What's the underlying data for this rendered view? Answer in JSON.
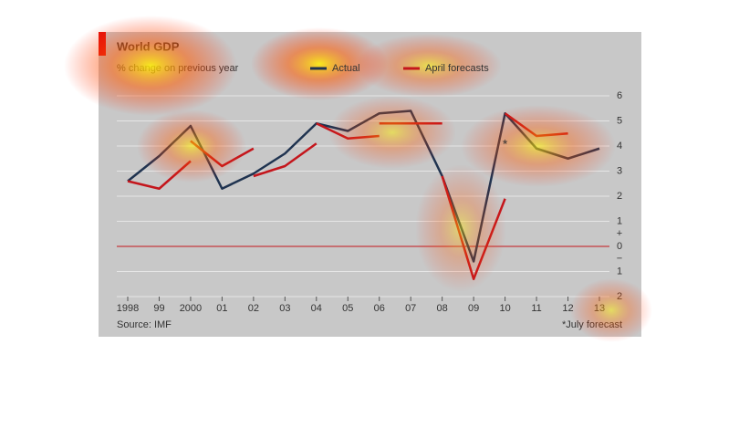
{
  "chart_data": {
    "type": "line",
    "title": "World GDP",
    "subtitle": "% change on previous year",
    "source": "Source: IMF",
    "footnote": "*July forecast",
    "annotation": "*",
    "sign_labels": [
      "+",
      "−"
    ],
    "categories": [
      "1998",
      "99",
      "2000",
      "01",
      "02",
      "03",
      "04",
      "05",
      "06",
      "07",
      "08",
      "09",
      "10",
      "11",
      "12",
      "13"
    ],
    "ylim": [
      -2,
      6
    ],
    "yticks": [
      6,
      5,
      4,
      3,
      2,
      1,
      0,
      {
        "value": -1,
        "label": "1"
      },
      {
        "value": -2,
        "label": "2"
      }
    ],
    "grid": true,
    "series": [
      {
        "name": "Actual",
        "color": "#1f3350",
        "values": [
          2.6,
          3.6,
          4.8,
          2.3,
          2.9,
          3.7,
          4.9,
          4.6,
          5.3,
          5.4,
          2.8,
          -0.6,
          5.3,
          3.9,
          3.5,
          3.9
        ]
      },
      {
        "name": "April forecasts",
        "color": "#c4161c",
        "segments": [
          [
            2.6,
            2.3,
            3.4,
            null,
            null,
            null,
            null,
            null,
            null,
            null,
            null,
            null,
            null,
            null,
            null,
            null
          ],
          [
            null,
            null,
            4.2,
            3.2,
            3.9,
            null,
            null,
            null,
            null,
            null,
            null,
            null,
            null,
            null,
            null,
            null
          ],
          [
            null,
            null,
            null,
            null,
            2.8,
            3.2,
            4.1,
            null,
            null,
            null,
            null,
            null,
            null,
            null,
            null,
            null
          ],
          [
            null,
            null,
            null,
            null,
            null,
            null,
            4.9,
            4.3,
            4.4,
            null,
            null,
            null,
            null,
            null,
            null,
            null
          ],
          [
            null,
            null,
            null,
            null,
            null,
            null,
            null,
            null,
            4.9,
            4.9,
            4.9,
            null,
            null,
            null,
            null,
            null
          ],
          [
            null,
            null,
            null,
            null,
            null,
            null,
            null,
            null,
            null,
            null,
            2.8,
            -1.3,
            1.9,
            null,
            null,
            null
          ],
          [
            null,
            null,
            null,
            null,
            null,
            null,
            null,
            null,
            null,
            null,
            null,
            null,
            5.3,
            4.4,
            4.5,
            null
          ]
        ]
      }
    ]
  }
}
